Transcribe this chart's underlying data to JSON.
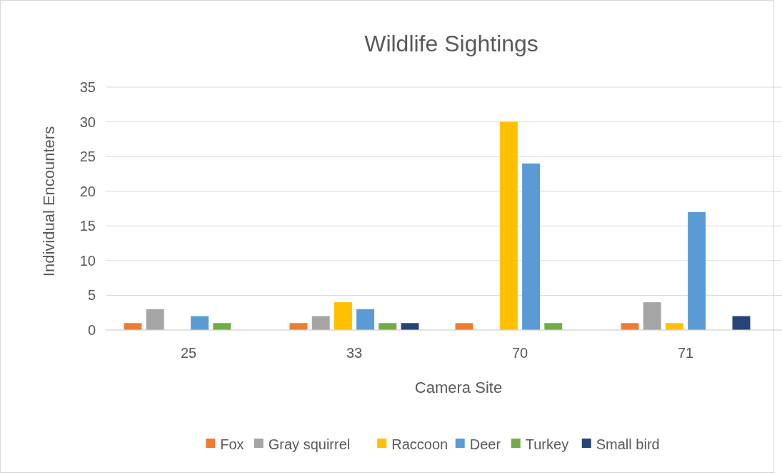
{
  "chart_data": {
    "type": "bar",
    "title": "Wildlife Sightings",
    "xlabel": "Camera Site",
    "ylabel": "Individual Encounters",
    "categories": [
      "25",
      "33",
      "70",
      "71"
    ],
    "series": [
      {
        "name": "Fox",
        "color": "#ed7d31",
        "values": [
          1,
          1,
          1,
          1
        ]
      },
      {
        "name": "Gray squirrel",
        "color": "#a5a5a5",
        "values": [
          3,
          2,
          0,
          4
        ]
      },
      {
        "name": "Raccoon",
        "color": "#ffc000",
        "values": [
          0,
          4,
          30,
          1
        ]
      },
      {
        "name": "Deer",
        "color": "#5b9bd5",
        "values": [
          2,
          3,
          24,
          17
        ]
      },
      {
        "name": "Turkey",
        "color": "#70ad47",
        "values": [
          1,
          1,
          1,
          0
        ]
      },
      {
        "name": "Small bird",
        "color": "#264478",
        "values": [
          0,
          1,
          0,
          2
        ]
      }
    ],
    "ylim": [
      0,
      35
    ],
    "yticks": [
      0,
      5,
      10,
      15,
      20,
      25,
      30,
      35
    ],
    "grid": "y",
    "legend": "bottom"
  }
}
